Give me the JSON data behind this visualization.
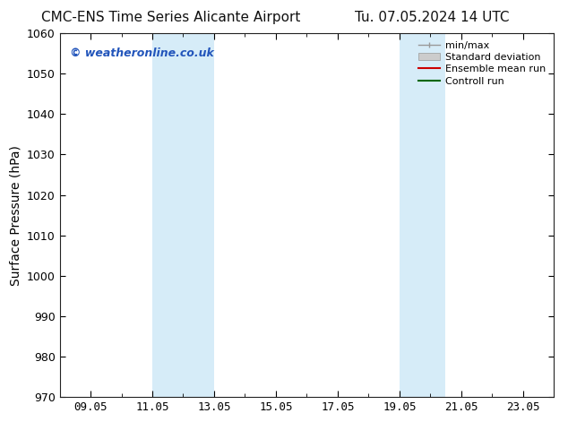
{
  "title_left": "CMC-ENS Time Series Alicante Airport",
  "title_right": "Tu. 07.05.2024 14 UTC",
  "ylabel": "Surface Pressure (hPa)",
  "ylim": [
    970,
    1060
  ],
  "yticks": [
    970,
    980,
    990,
    1000,
    1010,
    1020,
    1030,
    1040,
    1050,
    1060
  ],
  "xtick_labels": [
    "09.05",
    "11.05",
    "13.05",
    "15.05",
    "17.05",
    "19.05",
    "21.05",
    "23.05"
  ],
  "xtick_positions": [
    1,
    3,
    5,
    7,
    9,
    11,
    13,
    15
  ],
  "xlim": [
    0,
    16
  ],
  "shaded_regions": [
    {
      "xmin": 3,
      "xmax": 5
    },
    {
      "xmin": 11,
      "xmax": 12.5
    }
  ],
  "shaded_color": "#d6ecf8",
  "watermark": "© weatheronline.co.uk",
  "watermark_color": "#2255bb",
  "legend_items": [
    {
      "label": "min/max",
      "color": "#aaaaaa"
    },
    {
      "label": "Standard deviation",
      "color": "#cccccc"
    },
    {
      "label": "Ensemble mean run",
      "color": "#cc0000"
    },
    {
      "label": "Controll run",
      "color": "#006600"
    }
  ],
  "background_color": "#ffffff",
  "title_fontsize": 11,
  "tick_fontsize": 9,
  "ylabel_fontsize": 10,
  "legend_fontsize": 8
}
